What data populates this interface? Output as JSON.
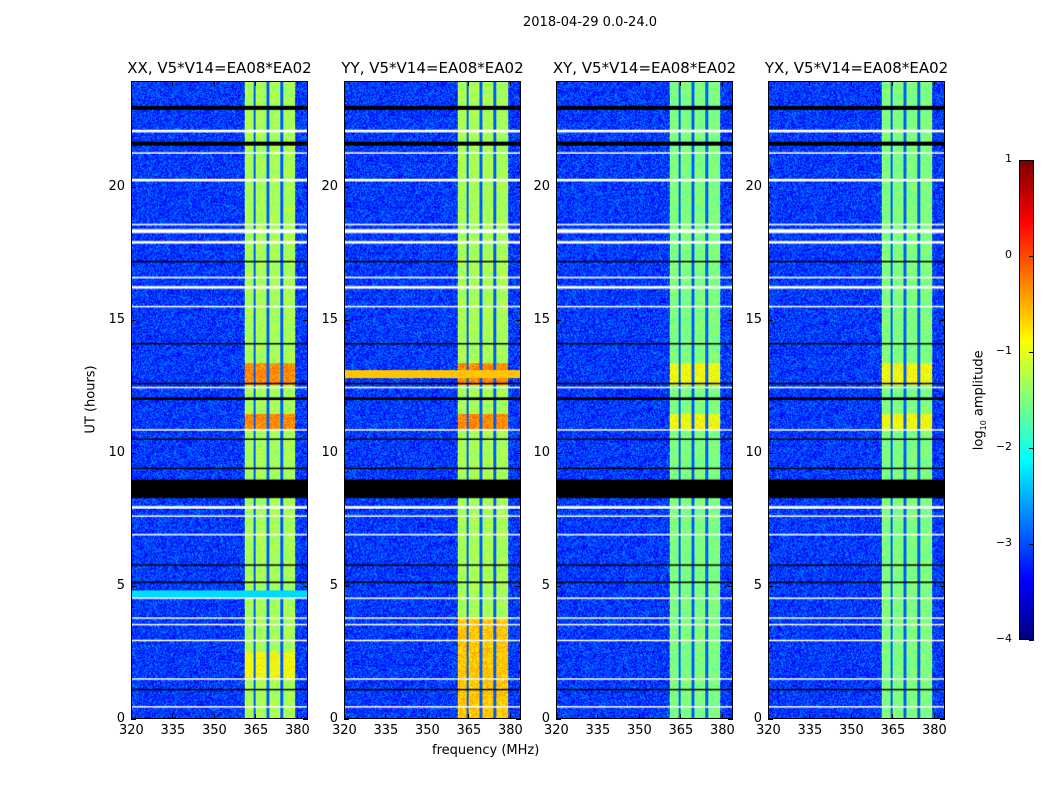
{
  "figure_title": "2018-04-29 0.0-24.0",
  "chart_data": [
    {
      "type": "heatmap",
      "title": "XX, V5*V14=EA08*EA02",
      "pol": "XX",
      "xlabel": "",
      "ylabel": "UT (hours)"
    },
    {
      "type": "heatmap",
      "title": "YY, V5*V14=EA08*EA02",
      "pol": "YY",
      "xlabel": "frequency (MHz)",
      "ylabel": ""
    },
    {
      "type": "heatmap",
      "title": "XY, V5*V14=EA08*EA02",
      "pol": "XY",
      "xlabel": "",
      "ylabel": ""
    },
    {
      "type": "heatmap",
      "title": "YX, V5*V14=EA08*EA02",
      "pol": "YX",
      "xlabel": "",
      "ylabel": ""
    }
  ],
  "axes": {
    "x_range_mhz": [
      320,
      384
    ],
    "x_ticks": [
      "320",
      "335",
      "350",
      "365",
      "380"
    ],
    "x_tick_values": [
      320,
      335,
      350,
      365,
      380
    ],
    "y_range_hours": [
      0,
      24
    ],
    "y_ticks": [
      "0",
      "5",
      "10",
      "15",
      "20"
    ],
    "y_tick_values": [
      0,
      5,
      10,
      15,
      20
    ],
    "bright_band_mhz": [
      361,
      379.5
    ],
    "band_gap_lines_mhz": [
      364.6,
      369.6,
      374.6
    ],
    "flagged_black_hours": [
      [
        8.3,
        9.0
      ],
      [
        22.95,
        23.1
      ],
      [
        21.6,
        21.75
      ],
      [
        1.05,
        1.1
      ],
      [
        5.1,
        5.15
      ],
      [
        5.75,
        5.8
      ],
      [
        9.4,
        9.45
      ],
      [
        10.5,
        10.55
      ],
      [
        12.0,
        12.1
      ],
      [
        12.6,
        12.65
      ],
      [
        14.1,
        14.15
      ],
      [
        17.2,
        17.25
      ]
    ],
    "flagged_white_hours": [
      [
        7.9,
        8.0
      ],
      [
        7.6,
        7.65
      ],
      [
        20.25,
        20.35
      ],
      [
        18.3,
        18.45
      ],
      [
        16.2,
        16.3
      ],
      [
        15.5,
        15.55
      ],
      [
        10.85,
        10.9
      ],
      [
        1.45,
        1.5
      ],
      [
        3.75,
        3.8
      ],
      [
        3.5,
        3.55
      ],
      [
        4.5,
        4.55
      ],
      [
        22.1,
        22.2
      ],
      [
        21.3,
        21.35
      ],
      [
        17.9,
        18.0
      ],
      [
        16.6,
        16.65
      ],
      [
        12.45,
        12.5
      ],
      [
        6.9,
        6.95
      ],
      [
        2.9,
        2.95
      ],
      [
        0.4,
        0.45
      ],
      [
        18.6,
        18.65
      ]
    ]
  },
  "colorbar": {
    "label_prefix": "log",
    "label_sub": "10",
    "label_suffix": " amplitude",
    "ticks": [
      "1",
      "0",
      "−1",
      "−2",
      "−3",
      "−4"
    ],
    "tick_values": [
      1,
      0,
      -1,
      -2,
      -3,
      -4
    ],
    "range": [
      -4,
      1
    ],
    "colormap": "jet"
  }
}
